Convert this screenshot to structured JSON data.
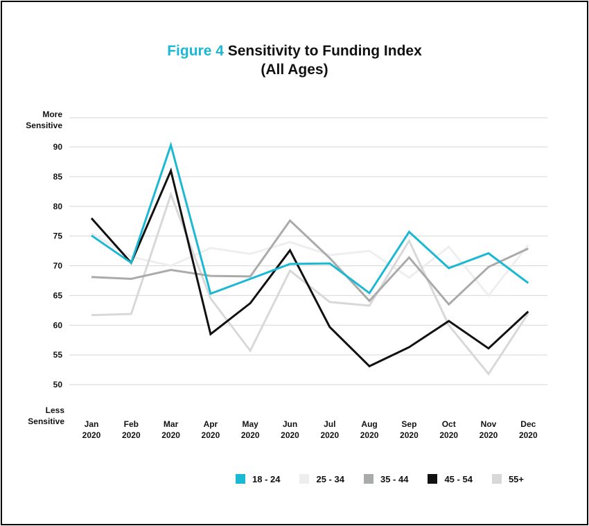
{
  "title": {
    "prefix": "Figure 4",
    "main": "Sensitivity to Funding Index",
    "sub": "(All Ages)"
  },
  "chart_data": {
    "type": "line",
    "categories": [
      [
        "Jan",
        "2020"
      ],
      [
        "Feb",
        "2020"
      ],
      [
        "Mar",
        "2020"
      ],
      [
        "Apr",
        "2020"
      ],
      [
        "May",
        "2020"
      ],
      [
        "Jun",
        "2020"
      ],
      [
        "Jul",
        "2020"
      ],
      [
        "Aug",
        "2020"
      ],
      [
        "Sep",
        "2020"
      ],
      [
        "Oct",
        "2020"
      ],
      [
        "Nov",
        "2020"
      ],
      [
        "Dec",
        "2020"
      ]
    ],
    "y_ticks": [
      50,
      55,
      60,
      65,
      70,
      75,
      80,
      85,
      90
    ],
    "y_top_label": [
      "More",
      "Sensitive"
    ],
    "y_bottom_label": [
      "Less",
      "Sensitive"
    ],
    "ylim": [
      47,
      95
    ],
    "grid": true,
    "legend_position": "bottom",
    "series": [
      {
        "name": "25 - 34",
        "color": "#eeeeee",
        "values": [
          75.5,
          71.5,
          70.0,
          73.0,
          72.0,
          74.0,
          71.8,
          72.5,
          68.0,
          73.2,
          65.0,
          73.5
        ]
      },
      {
        "name": "55+",
        "color": "#d8d8d8",
        "values": [
          61.7,
          61.9,
          82.0,
          64.5,
          55.7,
          69.2,
          63.9,
          63.3,
          74.2,
          60.0,
          51.8,
          62.0
        ]
      },
      {
        "name": "35 - 44",
        "color": "#a9abab",
        "values": [
          68.1,
          67.8,
          69.3,
          68.3,
          68.2,
          77.6,
          71.3,
          64.1,
          71.4,
          63.5,
          69.8,
          72.9
        ]
      },
      {
        "name": "45 - 54",
        "color": "#111111",
        "values": [
          78.0,
          70.5,
          86.0,
          58.5,
          63.7,
          72.6,
          59.7,
          53.1,
          56.3,
          60.7,
          56.1,
          62.3
        ]
      },
      {
        "name": "18 - 24",
        "color": "#1ab8d2",
        "values": [
          75.1,
          70.5,
          90.3,
          65.3,
          67.8,
          70.3,
          70.4,
          65.4,
          75.7,
          69.6,
          72.1,
          67.1
        ]
      }
    ],
    "legend": [
      {
        "label": "18 - 24",
        "color": "#1ab8d2"
      },
      {
        "label": "25 - 34",
        "color": "#eeeeee"
      },
      {
        "label": "35 - 44",
        "color": "#a9abab"
      },
      {
        "label": "45 - 54",
        "color": "#111111"
      },
      {
        "label": "55+",
        "color": "#d8d8d8"
      }
    ]
  }
}
